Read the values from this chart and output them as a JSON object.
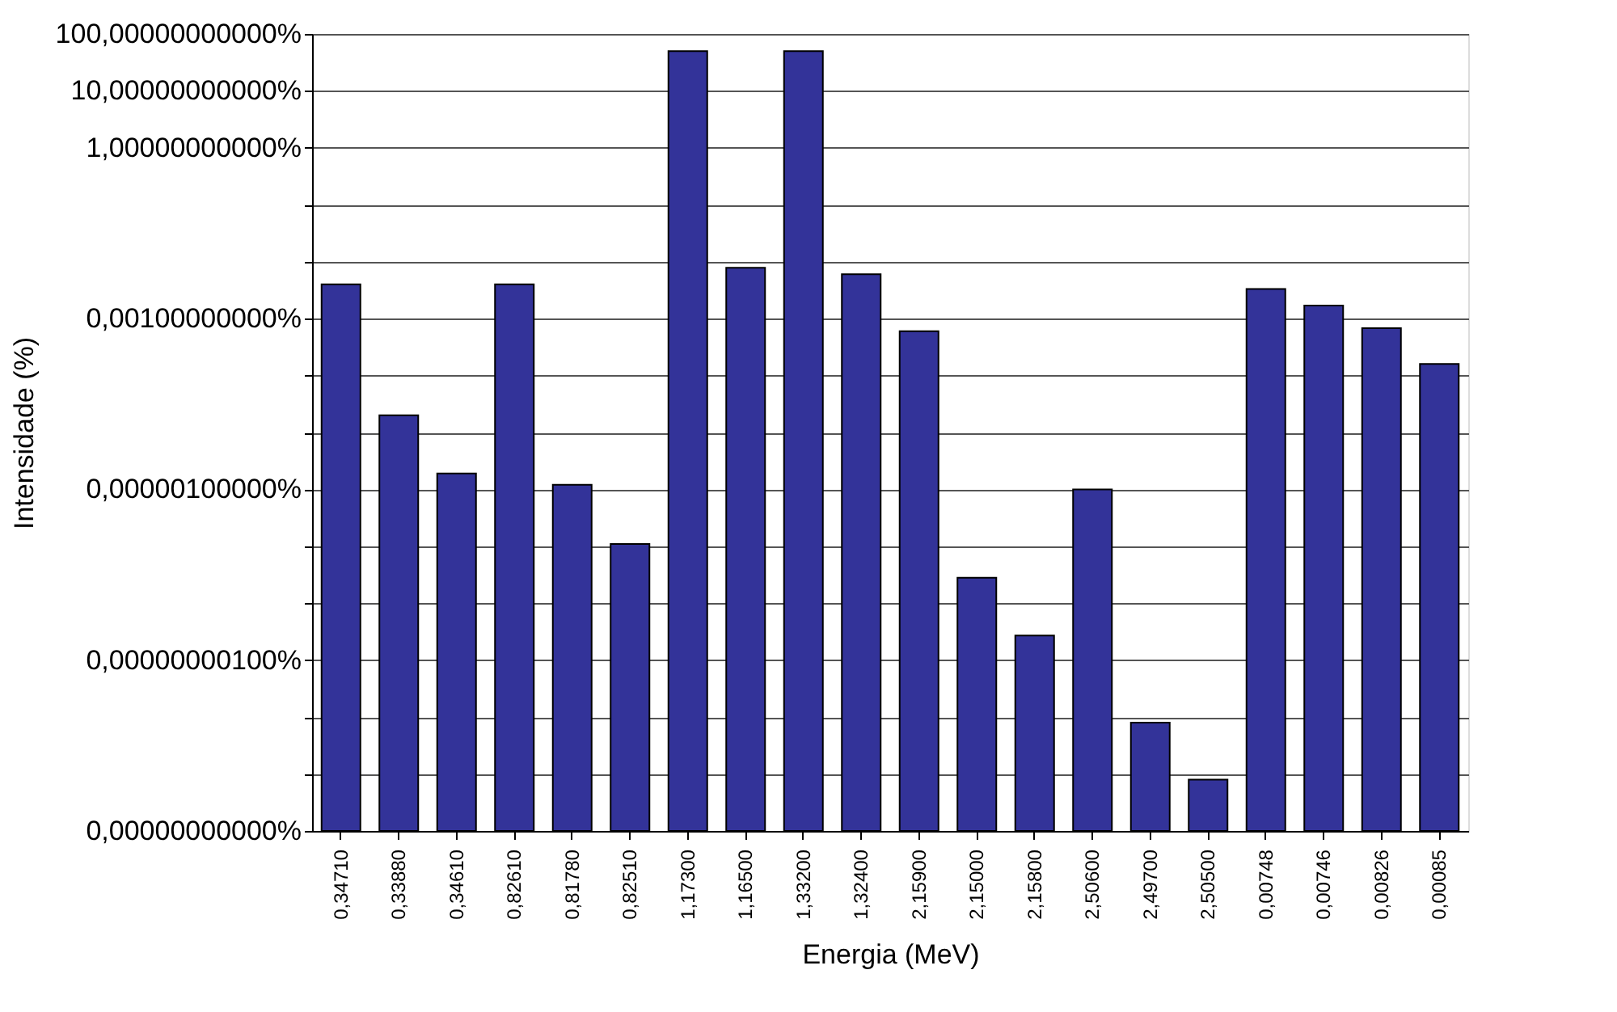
{
  "chart_data": {
    "type": "bar",
    "xlabel": "Energia (MeV)",
    "ylabel": "Intensidade (%)",
    "categories": [
      "0,34710",
      "0,33880",
      "0,34610",
      "0,82610",
      "0,81780",
      "0,82510",
      "1,17300",
      "1,16500",
      "1,33200",
      "1,32400",
      "2,15900",
      "2,15000",
      "2,15800",
      "2,50600",
      "2,49700",
      "2,50500",
      "0,00748",
      "0,00746",
      "0,00826",
      "0,00085"
    ],
    "values": [
      0.004,
      2e-05,
      1.9e-06,
      0.004,
      1.2e-06,
      1.1e-07,
      50,
      0.0078,
      50,
      0.006,
      0.0006,
      2.8e-08,
      2.7e-09,
      1e-06,
      8e-11,
      8e-12,
      0.0033,
      0.0017,
      0.00068,
      0.00016
    ],
    "color": "#333399",
    "log": true,
    "ylim": [
      1e-12,
      100
    ],
    "yticks": [
      {
        "value": 100,
        "label": "100,00000000000%"
      },
      {
        "value": 10,
        "label": "10,00000000000%"
      },
      {
        "value": 1,
        "label": "1,00000000000%"
      },
      {
        "value": 0.1,
        "label": null
      },
      {
        "value": 0.01,
        "label": null
      },
      {
        "value": 0.001,
        "label": "0,00100000000%"
      },
      {
        "value": 0.0001,
        "label": null
      },
      {
        "value": 1e-05,
        "label": null
      },
      {
        "value": 1e-06,
        "label": "0,00000100000%"
      },
      {
        "value": 1e-07,
        "label": null
      },
      {
        "value": 1e-08,
        "label": null
      },
      {
        "value": 1e-09,
        "label": "0,00000000100%"
      },
      {
        "value": 1e-10,
        "label": null
      },
      {
        "value": 1e-11,
        "label": null
      },
      {
        "value": 1e-12,
        "label": "0,00000000000%"
      }
    ],
    "grid": "y"
  }
}
